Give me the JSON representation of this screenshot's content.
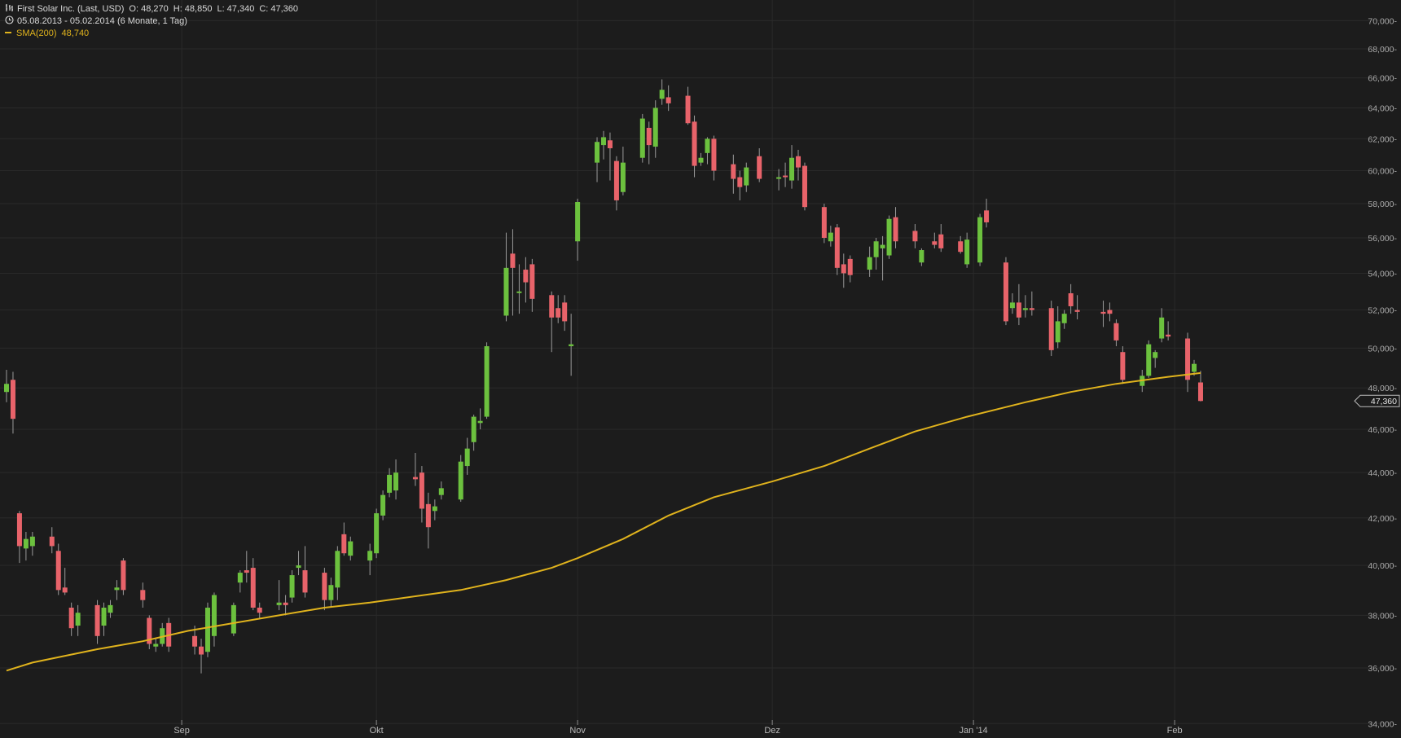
{
  "header": {
    "title": "First Solar Inc. (Last, USD)",
    "open": "O: 48,270",
    "high": "H: 48,850",
    "low": "L: 47,340",
    "close": "C: 47,360",
    "range": "05.08.2013 - 05.02.2014 (6 Monate, 1 Tag)",
    "sma_label": "SMA(200)",
    "sma_value": "48,740",
    "bar-icon": "ohlc-bars-icon",
    "clock-icon": "clock-icon"
  },
  "colors": {
    "background": "#1c1c1c",
    "up": "#6cc13e",
    "down": "#e8636a",
    "sma": "#e0b31d",
    "grid": "#2a2a2a",
    "wick": "#9a9a9a"
  },
  "chart_data": {
    "type": "candlestick",
    "y_scale": "log",
    "ylim": [
      33.5,
      71.5
    ],
    "yticks": [
      34,
      36,
      38,
      40,
      42,
      44,
      46,
      48,
      50,
      52,
      54,
      56,
      58,
      60,
      62,
      64,
      66,
      68,
      70
    ],
    "ytick_labels": [
      "34,000-",
      "36,000-",
      "38,000-",
      "40,000-",
      "42,000-",
      "44,000-",
      "46,000-",
      "48,000-",
      "50,000-",
      "52,000-",
      "54,000-",
      "56,000-",
      "58,000-",
      "60,000-",
      "62,000-",
      "64,000-",
      "66,000-",
      "68,000-",
      "70,000-"
    ],
    "xlim": [
      "2013-08-05",
      "2014-03-07"
    ],
    "xticks": [
      {
        "date": "2013-09-01",
        "label": "Sep"
      },
      {
        "date": "2013-10-01",
        "label": "Okt"
      },
      {
        "date": "2013-11-01",
        "label": "Nov"
      },
      {
        "date": "2013-12-01",
        "label": "Dez"
      },
      {
        "date": "2014-01-01",
        "label": "Jan '14"
      },
      {
        "date": "2014-02-01",
        "label": "Feb"
      }
    ],
    "last_price_label": "47,360",
    "last_price": 47.36,
    "candles": [
      {
        "date": "2013-08-05",
        "o": 47.8,
        "h": 48.9,
        "l": 47.3,
        "c": 48.2
      },
      {
        "date": "2013-08-06",
        "o": 48.4,
        "h": 48.8,
        "l": 45.8,
        "c": 46.5
      },
      {
        "date": "2013-08-07",
        "o": 42.2,
        "h": 42.3,
        "l": 40.1,
        "c": 40.8
      },
      {
        "date": "2013-08-08",
        "o": 40.7,
        "h": 41.4,
        "l": 40.2,
        "c": 41.1
      },
      {
        "date": "2013-08-09",
        "o": 40.8,
        "h": 41.4,
        "l": 40.4,
        "c": 41.2
      },
      {
        "date": "2013-08-12",
        "o": 41.2,
        "h": 41.6,
        "l": 40.5,
        "c": 40.8
      },
      {
        "date": "2013-08-13",
        "o": 40.6,
        "h": 40.9,
        "l": 38.8,
        "c": 39.0
      },
      {
        "date": "2013-08-14",
        "o": 39.1,
        "h": 39.9,
        "l": 38.8,
        "c": 38.9
      },
      {
        "date": "2013-08-15",
        "o": 38.3,
        "h": 38.5,
        "l": 37.2,
        "c": 37.5
      },
      {
        "date": "2013-08-16",
        "o": 37.6,
        "h": 38.4,
        "l": 37.2,
        "c": 38.1
      },
      {
        "date": "2013-08-19",
        "o": 38.4,
        "h": 38.6,
        "l": 36.9,
        "c": 37.2
      },
      {
        "date": "2013-08-20",
        "o": 37.6,
        "h": 38.5,
        "l": 37.2,
        "c": 38.3
      },
      {
        "date": "2013-08-21",
        "o": 38.1,
        "h": 38.6,
        "l": 37.9,
        "c": 38.4
      },
      {
        "date": "2013-08-22",
        "o": 39.0,
        "h": 39.4,
        "l": 38.6,
        "c": 39.1
      },
      {
        "date": "2013-08-23",
        "o": 40.2,
        "h": 40.3,
        "l": 38.8,
        "c": 39.0
      },
      {
        "date": "2013-08-26",
        "o": 39.0,
        "h": 39.3,
        "l": 38.3,
        "c": 38.6
      },
      {
        "date": "2013-08-27",
        "o": 37.9,
        "h": 38.0,
        "l": 36.7,
        "c": 36.9
      },
      {
        "date": "2013-08-28",
        "o": 36.8,
        "h": 37.1,
        "l": 36.6,
        "c": 36.9
      },
      {
        "date": "2013-08-29",
        "o": 36.9,
        "h": 37.7,
        "l": 36.8,
        "c": 37.5
      },
      {
        "date": "2013-08-30",
        "o": 37.7,
        "h": 37.9,
        "l": 36.6,
        "c": 36.8
      },
      {
        "date": "2013-09-03",
        "o": 37.2,
        "h": 37.6,
        "l": 36.5,
        "c": 36.8
      },
      {
        "date": "2013-09-04",
        "o": 36.8,
        "h": 37.1,
        "l": 35.8,
        "c": 36.5
      },
      {
        "date": "2013-09-05",
        "o": 36.6,
        "h": 38.5,
        "l": 36.4,
        "c": 38.3
      },
      {
        "date": "2013-09-06",
        "o": 37.2,
        "h": 38.9,
        "l": 36.8,
        "c": 38.8
      },
      {
        "date": "2013-09-09",
        "o": 37.3,
        "h": 38.5,
        "l": 37.2,
        "c": 38.4
      },
      {
        "date": "2013-09-10",
        "o": 39.3,
        "h": 39.8,
        "l": 38.9,
        "c": 39.7
      },
      {
        "date": "2013-09-11",
        "o": 39.8,
        "h": 40.6,
        "l": 39.3,
        "c": 39.7
      },
      {
        "date": "2013-09-12",
        "o": 39.9,
        "h": 40.3,
        "l": 38.2,
        "c": 38.3
      },
      {
        "date": "2013-09-13",
        "o": 38.3,
        "h": 38.5,
        "l": 37.9,
        "c": 38.1
      },
      {
        "date": "2013-09-16",
        "o": 38.4,
        "h": 39.4,
        "l": 38.2,
        "c": 38.5
      },
      {
        "date": "2013-09-17",
        "o": 38.5,
        "h": 38.8,
        "l": 38.0,
        "c": 38.4
      },
      {
        "date": "2013-09-18",
        "o": 38.7,
        "h": 39.8,
        "l": 38.5,
        "c": 39.6
      },
      {
        "date": "2013-09-19",
        "o": 39.9,
        "h": 40.6,
        "l": 39.6,
        "c": 40.0
      },
      {
        "date": "2013-09-20",
        "o": 39.8,
        "h": 40.8,
        "l": 38.7,
        "c": 38.9
      },
      {
        "date": "2013-09-23",
        "o": 39.7,
        "h": 39.9,
        "l": 38.2,
        "c": 38.6
      },
      {
        "date": "2013-09-24",
        "o": 38.6,
        "h": 39.5,
        "l": 38.3,
        "c": 39.2
      },
      {
        "date": "2013-09-25",
        "o": 39.1,
        "h": 40.8,
        "l": 38.6,
        "c": 40.6
      },
      {
        "date": "2013-09-26",
        "o": 41.3,
        "h": 41.8,
        "l": 40.4,
        "c": 40.5
      },
      {
        "date": "2013-09-27",
        "o": 40.4,
        "h": 41.2,
        "l": 40.2,
        "c": 41.0
      },
      {
        "date": "2013-09-30",
        "o": 40.2,
        "h": 40.9,
        "l": 39.6,
        "c": 40.6
      },
      {
        "date": "2013-10-01",
        "o": 40.5,
        "h": 42.4,
        "l": 40.3,
        "c": 42.2
      },
      {
        "date": "2013-10-02",
        "o": 42.1,
        "h": 43.2,
        "l": 41.9,
        "c": 43.0
      },
      {
        "date": "2013-10-03",
        "o": 43.1,
        "h": 44.2,
        "l": 42.9,
        "c": 43.9
      },
      {
        "date": "2013-10-04",
        "o": 43.2,
        "h": 44.6,
        "l": 42.8,
        "c": 44.0
      },
      {
        "date": "2013-10-07",
        "o": 43.8,
        "h": 44.9,
        "l": 43.4,
        "c": 43.7
      },
      {
        "date": "2013-10-08",
        "o": 44.0,
        "h": 44.3,
        "l": 41.8,
        "c": 42.4
      },
      {
        "date": "2013-10-09",
        "o": 42.6,
        "h": 43.1,
        "l": 40.7,
        "c": 41.6
      },
      {
        "date": "2013-10-10",
        "o": 42.3,
        "h": 42.8,
        "l": 41.9,
        "c": 42.5
      },
      {
        "date": "2013-10-11",
        "o": 43.0,
        "h": 43.6,
        "l": 42.8,
        "c": 43.3
      },
      {
        "date": "2013-10-14",
        "o": 42.8,
        "h": 44.8,
        "l": 42.7,
        "c": 44.5
      },
      {
        "date": "2013-10-15",
        "o": 44.3,
        "h": 45.6,
        "l": 43.9,
        "c": 45.1
      },
      {
        "date": "2013-10-16",
        "o": 45.4,
        "h": 46.7,
        "l": 45.0,
        "c": 46.6
      },
      {
        "date": "2013-10-17",
        "o": 46.3,
        "h": 47.0,
        "l": 46.0,
        "c": 46.4
      },
      {
        "date": "2013-10-18",
        "o": 46.6,
        "h": 50.3,
        "l": 46.5,
        "c": 50.1
      },
      {
        "date": "2013-10-21",
        "o": 51.7,
        "h": 56.3,
        "l": 51.4,
        "c": 54.3
      },
      {
        "date": "2013-10-22",
        "o": 55.1,
        "h": 56.5,
        "l": 51.7,
        "c": 54.3
      },
      {
        "date": "2013-10-23",
        "o": 53.0,
        "h": 54.5,
        "l": 51.8,
        "c": 53.0
      },
      {
        "date": "2013-10-24",
        "o": 54.2,
        "h": 54.9,
        "l": 52.4,
        "c": 53.5
      },
      {
        "date": "2013-10-25",
        "o": 54.5,
        "h": 54.8,
        "l": 51.9,
        "c": 52.6
      },
      {
        "date": "2013-10-28",
        "o": 52.8,
        "h": 53.0,
        "l": 49.8,
        "c": 51.6
      },
      {
        "date": "2013-10-29",
        "o": 52.1,
        "h": 52.8,
        "l": 51.3,
        "c": 51.6
      },
      {
        "date": "2013-10-30",
        "o": 52.4,
        "h": 52.8,
        "l": 50.9,
        "c": 51.4
      },
      {
        "date": "2013-10-31",
        "o": 50.1,
        "h": 51.8,
        "l": 48.6,
        "c": 50.2
      },
      {
        "date": "2013-11-01",
        "o": 55.8,
        "h": 58.3,
        "l": 54.7,
        "c": 58.1
      },
      {
        "date": "2013-11-04",
        "o": 60.5,
        "h": 62.1,
        "l": 59.3,
        "c": 61.8
      },
      {
        "date": "2013-11-05",
        "o": 61.6,
        "h": 62.5,
        "l": 60.7,
        "c": 62.1
      },
      {
        "date": "2013-11-06",
        "o": 61.9,
        "h": 62.4,
        "l": 59.4,
        "c": 61.4
      },
      {
        "date": "2013-11-07",
        "o": 60.6,
        "h": 60.9,
        "l": 57.6,
        "c": 58.2
      },
      {
        "date": "2013-11-08",
        "o": 58.7,
        "h": 61.5,
        "l": 58.5,
        "c": 60.5
      },
      {
        "date": "2013-11-11",
        "o": 60.8,
        "h": 63.6,
        "l": 60.5,
        "c": 63.3
      },
      {
        "date": "2013-11-12",
        "o": 62.7,
        "h": 63.1,
        "l": 60.4,
        "c": 61.6
      },
      {
        "date": "2013-11-13",
        "o": 61.5,
        "h": 64.5,
        "l": 60.8,
        "c": 64.0
      },
      {
        "date": "2013-11-14",
        "o": 64.6,
        "h": 65.9,
        "l": 64.2,
        "c": 65.2
      },
      {
        "date": "2013-11-15",
        "o": 64.7,
        "h": 65.5,
        "l": 63.8,
        "c": 64.3
      },
      {
        "date": "2013-11-18",
        "o": 64.8,
        "h": 65.4,
        "l": 62.9,
        "c": 63.0
      },
      {
        "date": "2013-11-19",
        "o": 63.1,
        "h": 63.5,
        "l": 59.6,
        "c": 60.3
      },
      {
        "date": "2013-11-20",
        "o": 60.5,
        "h": 61.1,
        "l": 60.3,
        "c": 60.8
      },
      {
        "date": "2013-11-21",
        "o": 61.1,
        "h": 62.1,
        "l": 60.4,
        "c": 62.0
      },
      {
        "date": "2013-11-22",
        "o": 62.0,
        "h": 62.2,
        "l": 59.4,
        "c": 60.0
      },
      {
        "date": "2013-11-25",
        "o": 60.4,
        "h": 61.0,
        "l": 58.6,
        "c": 59.5
      },
      {
        "date": "2013-11-26",
        "o": 59.6,
        "h": 60.0,
        "l": 58.2,
        "c": 59.0
      },
      {
        "date": "2013-11-27",
        "o": 59.1,
        "h": 60.5,
        "l": 58.7,
        "c": 60.2
      },
      {
        "date": "2013-11-29",
        "o": 60.9,
        "h": 61.4,
        "l": 59.3,
        "c": 59.5
      },
      {
        "date": "2013-12-02",
        "o": 59.6,
        "h": 60.1,
        "l": 58.8,
        "c": 59.6
      },
      {
        "date": "2013-12-03",
        "o": 59.7,
        "h": 60.5,
        "l": 59.0,
        "c": 59.6
      },
      {
        "date": "2013-12-04",
        "o": 59.4,
        "h": 61.6,
        "l": 58.9,
        "c": 60.8
      },
      {
        "date": "2013-12-05",
        "o": 60.9,
        "h": 61.3,
        "l": 59.4,
        "c": 60.2
      },
      {
        "date": "2013-12-06",
        "o": 60.3,
        "h": 60.5,
        "l": 57.6,
        "c": 57.8
      },
      {
        "date": "2013-12-09",
        "o": 57.8,
        "h": 58.0,
        "l": 55.7,
        "c": 56.0
      },
      {
        "date": "2013-12-10",
        "o": 55.8,
        "h": 56.7,
        "l": 55.5,
        "c": 56.3
      },
      {
        "date": "2013-12-11",
        "o": 56.6,
        "h": 56.8,
        "l": 53.9,
        "c": 54.3
      },
      {
        "date": "2013-12-12",
        "o": 54.5,
        "h": 55.1,
        "l": 53.2,
        "c": 54.0
      },
      {
        "date": "2013-12-13",
        "o": 54.8,
        "h": 55.0,
        "l": 53.5,
        "c": 53.9
      },
      {
        "date": "2013-12-16",
        "o": 54.2,
        "h": 55.5,
        "l": 53.8,
        "c": 54.9
      },
      {
        "date": "2013-12-17",
        "o": 54.9,
        "h": 56.0,
        "l": 54.2,
        "c": 55.8
      },
      {
        "date": "2013-12-18",
        "o": 55.4,
        "h": 56.1,
        "l": 53.6,
        "c": 55.6
      },
      {
        "date": "2013-12-19",
        "o": 55.0,
        "h": 57.3,
        "l": 54.8,
        "c": 57.1
      },
      {
        "date": "2013-12-20",
        "o": 57.2,
        "h": 57.8,
        "l": 55.4,
        "c": 55.8
      },
      {
        "date": "2013-12-23",
        "o": 56.4,
        "h": 56.8,
        "l": 55.4,
        "c": 55.8
      },
      {
        "date": "2013-12-24",
        "o": 54.6,
        "h": 55.4,
        "l": 54.4,
        "c": 55.3
      },
      {
        "date": "2013-12-26",
        "o": 55.8,
        "h": 56.3,
        "l": 55.4,
        "c": 55.6
      },
      {
        "date": "2013-12-27",
        "o": 56.2,
        "h": 56.8,
        "l": 55.2,
        "c": 55.4
      },
      {
        "date": "2013-12-30",
        "o": 55.8,
        "h": 56.1,
        "l": 55.1,
        "c": 55.2
      },
      {
        "date": "2013-12-31",
        "o": 54.5,
        "h": 56.3,
        "l": 54.3,
        "c": 55.9
      },
      {
        "date": "2014-01-02",
        "o": 54.6,
        "h": 57.4,
        "l": 54.4,
        "c": 57.2
      },
      {
        "date": "2014-01-03",
        "o": 57.6,
        "h": 58.3,
        "l": 56.6,
        "c": 56.9
      },
      {
        "date": "2014-01-06",
        "o": 54.6,
        "h": 54.9,
        "l": 51.2,
        "c": 51.4
      },
      {
        "date": "2014-01-07",
        "o": 52.1,
        "h": 52.9,
        "l": 51.8,
        "c": 52.4
      },
      {
        "date": "2014-01-08",
        "o": 52.4,
        "h": 53.4,
        "l": 51.2,
        "c": 51.6
      },
      {
        "date": "2014-01-09",
        "o": 52.0,
        "h": 52.8,
        "l": 51.6,
        "c": 52.1
      },
      {
        "date": "2014-01-10",
        "o": 52.1,
        "h": 53.0,
        "l": 51.7,
        "c": 52.0
      },
      {
        "date": "2014-01-13",
        "o": 52.1,
        "h": 52.5,
        "l": 49.6,
        "c": 49.9
      },
      {
        "date": "2014-01-14",
        "o": 50.3,
        "h": 52.2,
        "l": 50.0,
        "c": 51.4
      },
      {
        "date": "2014-01-15",
        "o": 51.3,
        "h": 52.0,
        "l": 51.0,
        "c": 51.8
      },
      {
        "date": "2014-01-16",
        "o": 52.9,
        "h": 53.4,
        "l": 51.8,
        "c": 52.2
      },
      {
        "date": "2014-01-17",
        "o": 52.0,
        "h": 52.8,
        "l": 51.5,
        "c": 51.9
      },
      {
        "date": "2014-01-21",
        "o": 51.9,
        "h": 52.5,
        "l": 51.1,
        "c": 51.8
      },
      {
        "date": "2014-01-22",
        "o": 52.0,
        "h": 52.4,
        "l": 51.4,
        "c": 51.8
      },
      {
        "date": "2014-01-23",
        "o": 51.3,
        "h": 51.5,
        "l": 50.1,
        "c": 50.4
      },
      {
        "date": "2014-01-24",
        "o": 49.8,
        "h": 50.1,
        "l": 48.2,
        "c": 48.4
      },
      {
        "date": "2014-01-27",
        "o": 48.1,
        "h": 48.9,
        "l": 47.8,
        "c": 48.6
      },
      {
        "date": "2014-01-28",
        "o": 48.6,
        "h": 50.4,
        "l": 48.5,
        "c": 50.2
      },
      {
        "date": "2014-01-29",
        "o": 49.5,
        "h": 49.9,
        "l": 49.0,
        "c": 49.8
      },
      {
        "date": "2014-01-30",
        "o": 50.5,
        "h": 52.1,
        "l": 50.3,
        "c": 51.6
      },
      {
        "date": "2014-01-31",
        "o": 50.7,
        "h": 51.4,
        "l": 50.4,
        "c": 50.6
      },
      {
        "date": "2014-02-03",
        "o": 50.5,
        "h": 50.8,
        "l": 47.8,
        "c": 48.4
      },
      {
        "date": "2014-02-04",
        "o": 48.8,
        "h": 49.4,
        "l": 48.6,
        "c": 49.2
      },
      {
        "date": "2014-02-05",
        "o": 48.27,
        "h": 48.85,
        "l": 47.34,
        "c": 47.36
      }
    ],
    "sma": [
      {
        "date": "2013-08-05",
        "v": 35.9
      },
      {
        "date": "2013-08-09",
        "v": 36.2
      },
      {
        "date": "2013-08-19",
        "v": 36.7
      },
      {
        "date": "2013-08-26",
        "v": 37.0
      },
      {
        "date": "2013-09-02",
        "v": 37.4
      },
      {
        "date": "2013-09-09",
        "v": 37.7
      },
      {
        "date": "2013-09-16",
        "v": 38.0
      },
      {
        "date": "2013-09-23",
        "v": 38.3
      },
      {
        "date": "2013-09-30",
        "v": 38.5
      },
      {
        "date": "2013-10-07",
        "v": 38.75
      },
      {
        "date": "2013-10-14",
        "v": 39.0
      },
      {
        "date": "2013-10-21",
        "v": 39.4
      },
      {
        "date": "2013-10-28",
        "v": 39.9
      },
      {
        "date": "2013-11-01",
        "v": 40.3
      },
      {
        "date": "2013-11-08",
        "v": 41.1
      },
      {
        "date": "2013-11-15",
        "v": 42.1
      },
      {
        "date": "2013-11-22",
        "v": 42.9
      },
      {
        "date": "2013-12-01",
        "v": 43.6
      },
      {
        "date": "2013-12-09",
        "v": 44.3
      },
      {
        "date": "2013-12-16",
        "v": 45.1
      },
      {
        "date": "2013-12-23",
        "v": 45.9
      },
      {
        "date": "2013-12-31",
        "v": 46.6
      },
      {
        "date": "2014-01-09",
        "v": 47.3
      },
      {
        "date": "2014-01-16",
        "v": 47.8
      },
      {
        "date": "2014-01-23",
        "v": 48.2
      },
      {
        "date": "2014-01-31",
        "v": 48.55
      },
      {
        "date": "2014-02-05",
        "v": 48.74
      }
    ]
  }
}
